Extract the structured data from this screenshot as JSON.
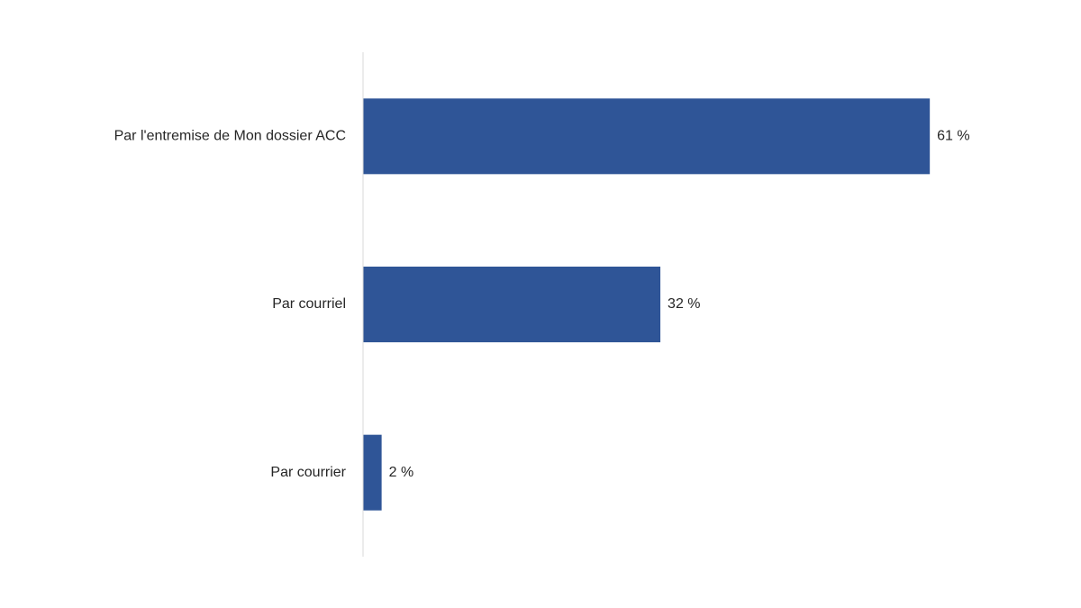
{
  "chart_data": {
    "type": "bar",
    "orientation": "horizontal",
    "categories": [
      "Par l'entremise de Mon dossier ACC",
      "Par courriel",
      "Par courrier"
    ],
    "values": [
      61,
      32,
      2
    ],
    "value_labels": [
      "61 %",
      "32 %",
      "2 %"
    ],
    "color": "#2f5597",
    "xlim": [
      0,
      70
    ]
  }
}
